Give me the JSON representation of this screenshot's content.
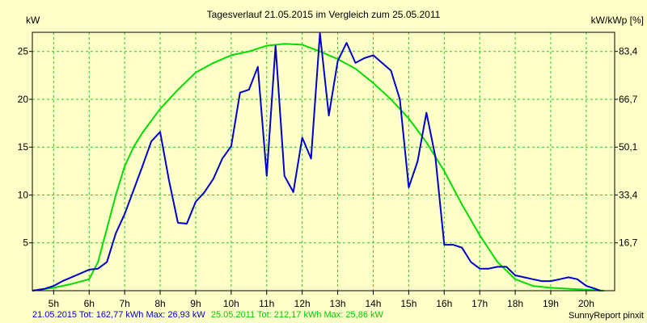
{
  "chart_data": {
    "type": "line",
    "title": "Tagesverlauf 21.05.2015 im Vergleich zum 25.05.2011",
    "ylabel_left": "kW",
    "ylabel_right": "kW/kWp [%]",
    "xlim": [
      4.4,
      20.8
    ],
    "ylim": [
      0,
      27
    ],
    "x_ticks": [
      5,
      6,
      7,
      8,
      9,
      10,
      11,
      12,
      13,
      14,
      15,
      16,
      17,
      18,
      19,
      20
    ],
    "x_tick_labels": [
      "5h",
      "6h",
      "7h",
      "8h",
      "9h",
      "10h",
      "11h",
      "12h",
      "13h",
      "14h",
      "15h",
      "16h",
      "17h",
      "18h",
      "19h",
      "20h"
    ],
    "y_left_ticks": [
      5,
      10,
      15,
      20,
      25
    ],
    "y_right_ticks": [
      {
        "value": 16.7,
        "y_kw": 5
      },
      {
        "value": 33.4,
        "y_kw": 10
      },
      {
        "value": 50.1,
        "y_kw": 15
      },
      {
        "value": 66.7,
        "y_kw": 20
      },
      {
        "value": 83.4,
        "y_kw": 25
      }
    ],
    "grid": true,
    "series": [
      {
        "name": "21.05.2015",
        "color": "#0000cc",
        "points": [
          [
            4.4,
            0
          ],
          [
            4.75,
            0.2
          ],
          [
            5.0,
            0.5
          ],
          [
            5.25,
            1.0
          ],
          [
            5.5,
            1.4
          ],
          [
            5.75,
            1.8
          ],
          [
            6.0,
            2.2
          ],
          [
            6.25,
            2.3
          ],
          [
            6.5,
            3.0
          ],
          [
            6.75,
            6.0
          ],
          [
            7.0,
            8.0
          ],
          [
            7.25,
            10.5
          ],
          [
            7.5,
            13.0
          ],
          [
            7.75,
            15.6
          ],
          [
            8.0,
            16.6
          ],
          [
            8.25,
            11.5
          ],
          [
            8.5,
            7.1
          ],
          [
            8.75,
            7.0
          ],
          [
            9.0,
            9.3
          ],
          [
            9.25,
            10.3
          ],
          [
            9.5,
            11.7
          ],
          [
            9.75,
            13.8
          ],
          [
            10.0,
            15.1
          ],
          [
            10.25,
            20.7
          ],
          [
            10.5,
            21.0
          ],
          [
            10.75,
            23.4
          ],
          [
            11.0,
            12.0
          ],
          [
            11.25,
            25.6
          ],
          [
            11.5,
            12.0
          ],
          [
            11.75,
            10.3
          ],
          [
            12.0,
            16.0
          ],
          [
            12.25,
            13.8
          ],
          [
            12.5,
            26.9
          ],
          [
            12.75,
            18.3
          ],
          [
            13.0,
            24.0
          ],
          [
            13.25,
            25.9
          ],
          [
            13.5,
            23.8
          ],
          [
            13.75,
            24.3
          ],
          [
            14.0,
            24.6
          ],
          [
            14.25,
            23.8
          ],
          [
            14.5,
            23.0
          ],
          [
            14.75,
            20.0
          ],
          [
            15.0,
            10.8
          ],
          [
            15.25,
            13.5
          ],
          [
            15.5,
            18.6
          ],
          [
            15.75,
            14.0
          ],
          [
            16.0,
            4.8
          ],
          [
            16.25,
            4.8
          ],
          [
            16.5,
            4.5
          ],
          [
            16.75,
            3.0
          ],
          [
            17.0,
            2.3
          ],
          [
            17.25,
            2.3
          ],
          [
            17.5,
            2.5
          ],
          [
            17.75,
            2.5
          ],
          [
            18.0,
            1.6
          ],
          [
            18.25,
            1.4
          ],
          [
            18.5,
            1.2
          ],
          [
            18.75,
            1.0
          ],
          [
            19.0,
            1.0
          ],
          [
            19.25,
            1.2
          ],
          [
            19.5,
            1.4
          ],
          [
            19.75,
            1.2
          ],
          [
            20.0,
            0.5
          ],
          [
            20.25,
            0.2
          ],
          [
            20.4,
            0
          ]
        ]
      },
      {
        "name": "25.05.2011",
        "color": "#00dd00",
        "points": [
          [
            4.4,
            0
          ],
          [
            5.0,
            0.3
          ],
          [
            5.5,
            0.7
          ],
          [
            6.0,
            1.2
          ],
          [
            6.25,
            3.0
          ],
          [
            6.5,
            6.5
          ],
          [
            6.75,
            10.0
          ],
          [
            7.0,
            13.0
          ],
          [
            7.25,
            15.0
          ],
          [
            7.5,
            16.5
          ],
          [
            8.0,
            19.0
          ],
          [
            8.5,
            21.0
          ],
          [
            9.0,
            22.8
          ],
          [
            9.5,
            23.8
          ],
          [
            10.0,
            24.6
          ],
          [
            10.5,
            25.0
          ],
          [
            11.0,
            25.6
          ],
          [
            11.5,
            25.8
          ],
          [
            12.0,
            25.7
          ],
          [
            12.5,
            25.0
          ],
          [
            13.0,
            24.2
          ],
          [
            13.5,
            23.2
          ],
          [
            14.0,
            21.7
          ],
          [
            14.5,
            20.0
          ],
          [
            15.0,
            18.0
          ],
          [
            15.5,
            15.5
          ],
          [
            16.0,
            12.5
          ],
          [
            16.5,
            9.0
          ],
          [
            17.0,
            5.8
          ],
          [
            17.5,
            3.0
          ],
          [
            18.0,
            1.2
          ],
          [
            18.5,
            0.5
          ],
          [
            19.0,
            0.3
          ],
          [
            19.5,
            0.2
          ],
          [
            20.0,
            0.1
          ],
          [
            20.5,
            0
          ]
        ]
      }
    ]
  },
  "footer": {
    "series1_text": "21.05.2015 Tot: 162,77 kWh Max: 26,93 kW",
    "series2_text": "25.05.2011 Tot: 212,17 kWh Max: 25,86 kW",
    "brand": "SunnyReport pinxit"
  },
  "colors": {
    "background": "#ffffc8",
    "grid": "#22cc22",
    "axis": "#000000",
    "series1": "#0000cc",
    "series2": "#00dd00"
  }
}
